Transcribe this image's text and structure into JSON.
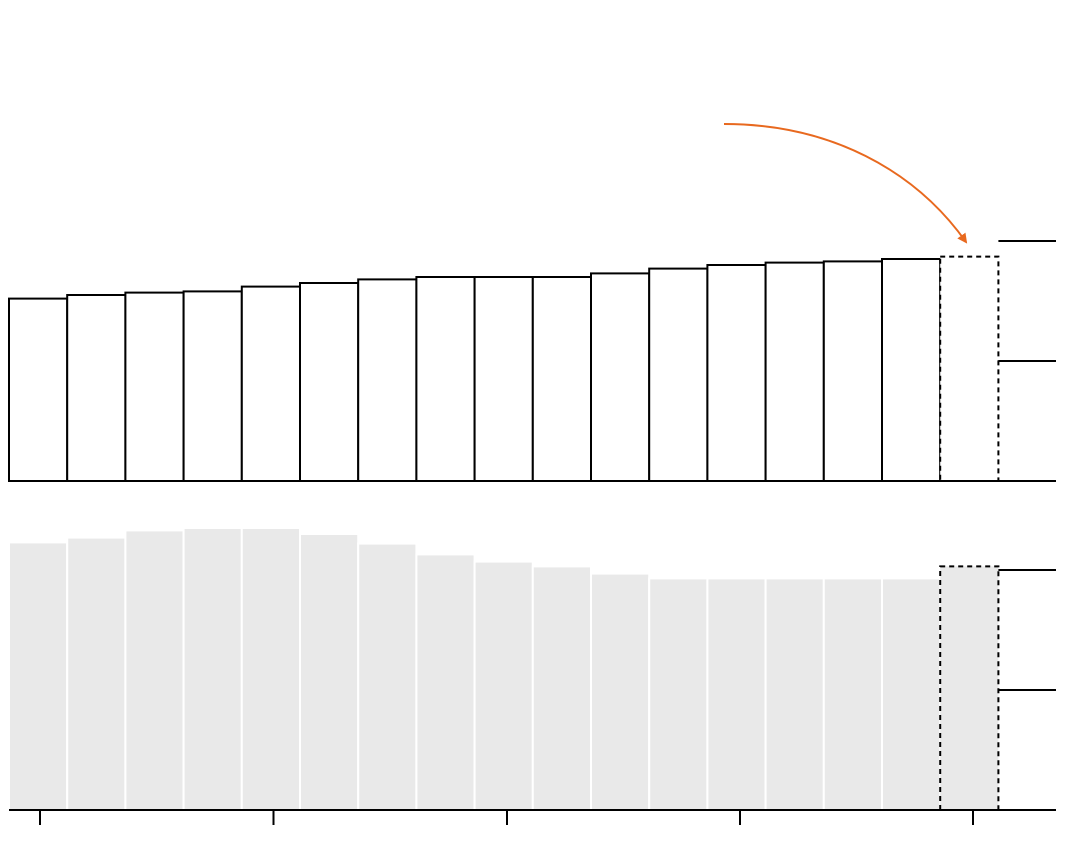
{
  "colors": {
    "top_fill": "#ffffff",
    "top_stroke": "#000000",
    "bottom_fill": "#e9e9e9",
    "bottom_separator": "#ffffff",
    "annotation_arrow": "#e8691f",
    "axis": "#000000"
  },
  "chart_data": [
    {
      "type": "bar",
      "style": "outlined",
      "axis": {
        "range": [
          0,
          2
        ],
        "ticks": [
          1,
          2
        ],
        "tick_side": "right",
        "tick_labels_shown": false
      },
      "values": [
        1.52,
        1.55,
        1.57,
        1.58,
        1.62,
        1.65,
        1.68,
        1.7,
        1.7,
        1.7,
        1.73,
        1.77,
        1.8,
        1.82,
        1.83,
        1.85,
        1.87
      ],
      "highlight": {
        "index": 16,
        "style": "dashed"
      },
      "annotation": {
        "type": "curved-arrow",
        "points_to_index": 16
      }
    },
    {
      "type": "bar",
      "style": "filled",
      "axis": {
        "range": [
          0,
          2
        ],
        "ticks": [
          1,
          2
        ],
        "tick_side": "right",
        "tick_labels_shown": false
      },
      "values": [
        2.23,
        2.27,
        2.33,
        2.35,
        2.35,
        2.3,
        2.22,
        2.13,
        2.07,
        2.03,
        1.97,
        1.93,
        1.93,
        1.93,
        1.93,
        1.93,
        2.03
      ],
      "highlight": {
        "index": 16,
        "style": "dashed"
      }
    }
  ],
  "x_axis": {
    "tick_count": 5,
    "tick_labels_shown": false
  }
}
